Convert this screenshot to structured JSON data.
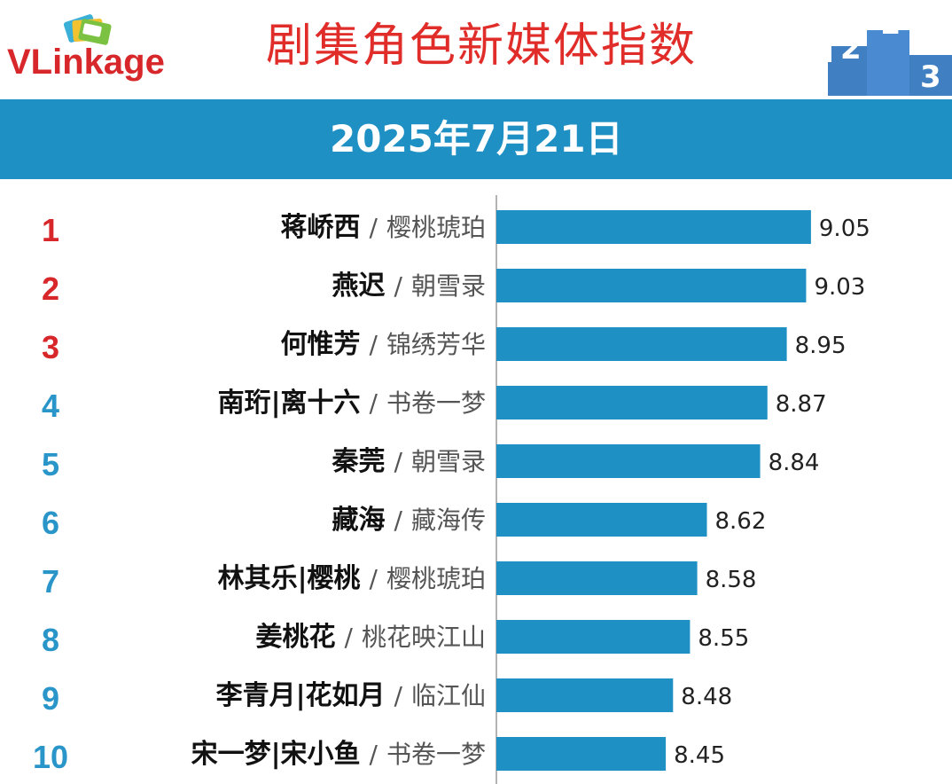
{
  "brand": {
    "prefix": "VLink",
    "suffix": "age"
  },
  "title": "剧集角色新媒体指数",
  "date": "2025年7月21日",
  "colors": {
    "bar": "#1e90c4",
    "rank_top": "#d7272a",
    "rank_rest": "#2a95c9",
    "title": "#e02d2a",
    "band": "#1e90c4"
  },
  "chart_data": {
    "type": "bar",
    "orientation": "horizontal",
    "categories": [
      {
        "rank": "1",
        "role": "蒋峤西",
        "drama": "樱桃琥珀"
      },
      {
        "rank": "2",
        "role": "燕迟",
        "drama": "朝雪录"
      },
      {
        "rank": "3",
        "role": "何惟芳",
        "drama": "锦绣芳华"
      },
      {
        "rank": "4",
        "role": "南珩|离十六",
        "drama": "书卷一梦"
      },
      {
        "rank": "5",
        "role": "秦莞",
        "drama": "朝雪录"
      },
      {
        "rank": "6",
        "role": "藏海",
        "drama": "藏海传"
      },
      {
        "rank": "7",
        "role": "林其乐|樱桃",
        "drama": "樱桃琥珀"
      },
      {
        "rank": "8",
        "role": "姜桃花",
        "drama": "桃花映江山"
      },
      {
        "rank": "9",
        "role": "李青月|花如月",
        "drama": "临江仙"
      },
      {
        "rank": "10",
        "role": "宋一梦|宋小鱼",
        "drama": "书卷一梦"
      }
    ],
    "values": [
      9.05,
      9.03,
      8.95,
      8.87,
      8.84,
      8.62,
      8.58,
      8.55,
      8.48,
      8.45
    ],
    "value_labels": [
      "9.05",
      "9.03",
      "8.95",
      "8.87",
      "8.84",
      "8.62",
      "8.58",
      "8.55",
      "8.48",
      "8.45"
    ],
    "separator": "/",
    "xlim": [
      7.75,
      9.1
    ],
    "grid": false,
    "legend": "none"
  }
}
